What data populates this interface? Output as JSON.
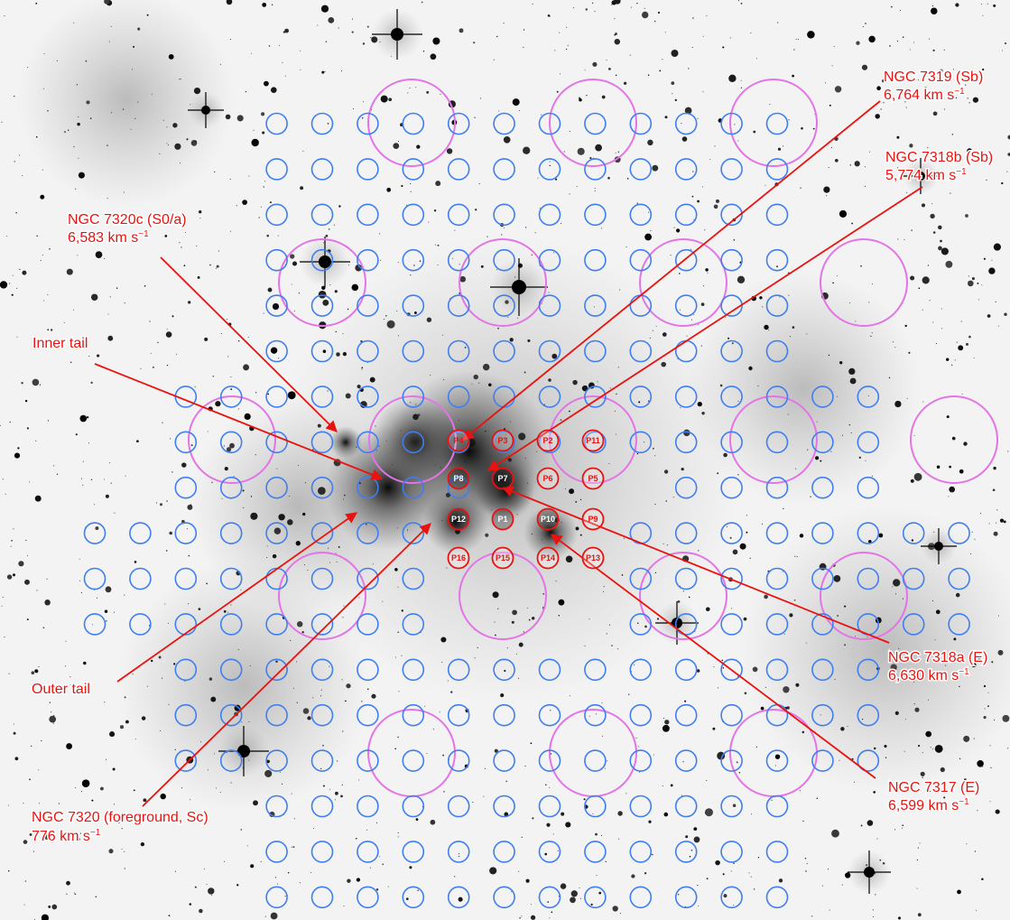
{
  "colors": {
    "annotation": "#e8120f",
    "small_aperture": "#3f7ef0",
    "large_aperture": "#e374e6",
    "sky_background": "#f3f3f3",
    "stars": "#111111"
  },
  "labels": [
    {
      "id": "ngc7319",
      "lines": [
        {
          "text": "NGC 7319 (Sb)"
        },
        {
          "text": "6,764 km s",
          "sup": "−1"
        }
      ]
    },
    {
      "id": "ngc7318b",
      "lines": [
        {
          "text": "NGC 7318b (Sb)"
        },
        {
          "text": "5,774 km s",
          "sup": "−1"
        }
      ]
    },
    {
      "id": "ngc7320c",
      "lines": [
        {
          "text": "NGC 7320c (S0/a)"
        },
        {
          "text": "6,583 km s",
          "sup": "−1"
        }
      ]
    },
    {
      "id": "inner-tail",
      "lines": [
        {
          "text": "Inner tail"
        }
      ]
    },
    {
      "id": "outer-tail",
      "lines": [
        {
          "text": "Outer tail"
        }
      ]
    },
    {
      "id": "ngc7320",
      "lines": [
        {
          "text": "NGC 7320 (foreground, Sc)"
        },
        {
          "text": "776 km s",
          "sup": "−1"
        }
      ]
    },
    {
      "id": "ngc7318a",
      "lines": [
        {
          "text": "NGC 7318a (E)"
        },
        {
          "text": "6,630 km s",
          "sup": "−1"
        }
      ]
    },
    {
      "id": "ngc7317",
      "lines": [
        {
          "text": "NGC 7317 (E)"
        },
        {
          "text": "6,599 km s",
          "sup": "−1"
        }
      ]
    }
  ],
  "pointings": [
    "P1",
    "P2",
    "P3",
    "P4",
    "P5",
    "P6",
    "P7",
    "P8",
    "P9",
    "P10",
    "P11",
    "P12",
    "P13",
    "P14",
    "P15",
    "P16"
  ]
}
